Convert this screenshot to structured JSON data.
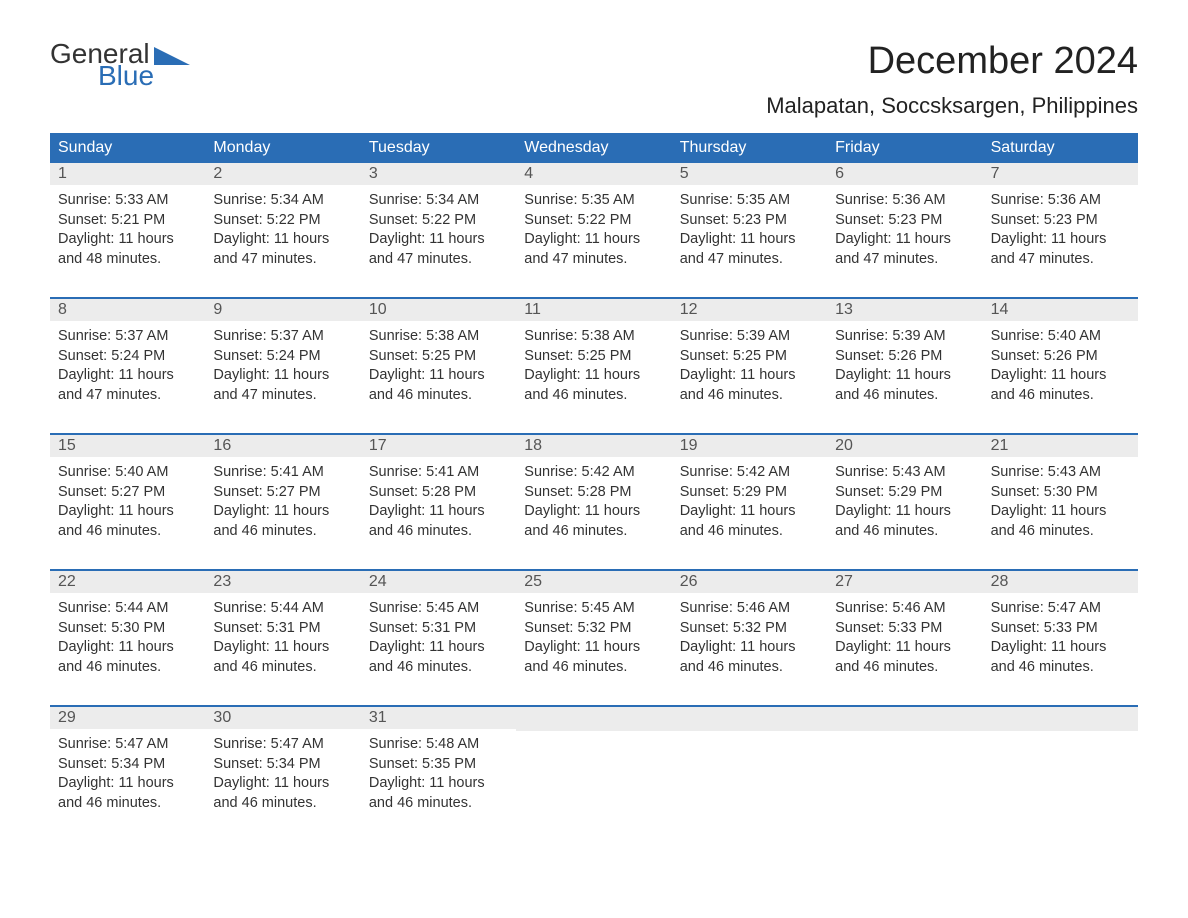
{
  "logo": {
    "word1": "General",
    "word2": "Blue"
  },
  "header": {
    "month_title": "December 2024",
    "location": "Malapatan, Soccsksargen, Philippines"
  },
  "colors": {
    "brand_blue": "#2a6db5",
    "header_bg": "#2a6db5",
    "header_text": "#ffffff",
    "daynum_bg": "#ececec",
    "body_text": "#333333",
    "page_bg": "#ffffff"
  },
  "layout": {
    "columns": 7,
    "weeks": 5,
    "cell_fontsize_pt": 11,
    "header_fontsize_pt": 12,
    "title_fontsize_pt": 28,
    "location_fontsize_pt": 16
  },
  "day_names": [
    "Sunday",
    "Monday",
    "Tuesday",
    "Wednesday",
    "Thursday",
    "Friday",
    "Saturday"
  ],
  "days": [
    {
      "n": 1,
      "sunrise": "5:33 AM",
      "sunset": "5:21 PM",
      "daylight": "11 hours and 48 minutes."
    },
    {
      "n": 2,
      "sunrise": "5:34 AM",
      "sunset": "5:22 PM",
      "daylight": "11 hours and 47 minutes."
    },
    {
      "n": 3,
      "sunrise": "5:34 AM",
      "sunset": "5:22 PM",
      "daylight": "11 hours and 47 minutes."
    },
    {
      "n": 4,
      "sunrise": "5:35 AM",
      "sunset": "5:22 PM",
      "daylight": "11 hours and 47 minutes."
    },
    {
      "n": 5,
      "sunrise": "5:35 AM",
      "sunset": "5:23 PM",
      "daylight": "11 hours and 47 minutes."
    },
    {
      "n": 6,
      "sunrise": "5:36 AM",
      "sunset": "5:23 PM",
      "daylight": "11 hours and 47 minutes."
    },
    {
      "n": 7,
      "sunrise": "5:36 AM",
      "sunset": "5:23 PM",
      "daylight": "11 hours and 47 minutes."
    },
    {
      "n": 8,
      "sunrise": "5:37 AM",
      "sunset": "5:24 PM",
      "daylight": "11 hours and 47 minutes."
    },
    {
      "n": 9,
      "sunrise": "5:37 AM",
      "sunset": "5:24 PM",
      "daylight": "11 hours and 47 minutes."
    },
    {
      "n": 10,
      "sunrise": "5:38 AM",
      "sunset": "5:25 PM",
      "daylight": "11 hours and 46 minutes."
    },
    {
      "n": 11,
      "sunrise": "5:38 AM",
      "sunset": "5:25 PM",
      "daylight": "11 hours and 46 minutes."
    },
    {
      "n": 12,
      "sunrise": "5:39 AM",
      "sunset": "5:25 PM",
      "daylight": "11 hours and 46 minutes."
    },
    {
      "n": 13,
      "sunrise": "5:39 AM",
      "sunset": "5:26 PM",
      "daylight": "11 hours and 46 minutes."
    },
    {
      "n": 14,
      "sunrise": "5:40 AM",
      "sunset": "5:26 PM",
      "daylight": "11 hours and 46 minutes."
    },
    {
      "n": 15,
      "sunrise": "5:40 AM",
      "sunset": "5:27 PM",
      "daylight": "11 hours and 46 minutes."
    },
    {
      "n": 16,
      "sunrise": "5:41 AM",
      "sunset": "5:27 PM",
      "daylight": "11 hours and 46 minutes."
    },
    {
      "n": 17,
      "sunrise": "5:41 AM",
      "sunset": "5:28 PM",
      "daylight": "11 hours and 46 minutes."
    },
    {
      "n": 18,
      "sunrise": "5:42 AM",
      "sunset": "5:28 PM",
      "daylight": "11 hours and 46 minutes."
    },
    {
      "n": 19,
      "sunrise": "5:42 AM",
      "sunset": "5:29 PM",
      "daylight": "11 hours and 46 minutes."
    },
    {
      "n": 20,
      "sunrise": "5:43 AM",
      "sunset": "5:29 PM",
      "daylight": "11 hours and 46 minutes."
    },
    {
      "n": 21,
      "sunrise": "5:43 AM",
      "sunset": "5:30 PM",
      "daylight": "11 hours and 46 minutes."
    },
    {
      "n": 22,
      "sunrise": "5:44 AM",
      "sunset": "5:30 PM",
      "daylight": "11 hours and 46 minutes."
    },
    {
      "n": 23,
      "sunrise": "5:44 AM",
      "sunset": "5:31 PM",
      "daylight": "11 hours and 46 minutes."
    },
    {
      "n": 24,
      "sunrise": "5:45 AM",
      "sunset": "5:31 PM",
      "daylight": "11 hours and 46 minutes."
    },
    {
      "n": 25,
      "sunrise": "5:45 AM",
      "sunset": "5:32 PM",
      "daylight": "11 hours and 46 minutes."
    },
    {
      "n": 26,
      "sunrise": "5:46 AM",
      "sunset": "5:32 PM",
      "daylight": "11 hours and 46 minutes."
    },
    {
      "n": 27,
      "sunrise": "5:46 AM",
      "sunset": "5:33 PM",
      "daylight": "11 hours and 46 minutes."
    },
    {
      "n": 28,
      "sunrise": "5:47 AM",
      "sunset": "5:33 PM",
      "daylight": "11 hours and 46 minutes."
    },
    {
      "n": 29,
      "sunrise": "5:47 AM",
      "sunset": "5:34 PM",
      "daylight": "11 hours and 46 minutes."
    },
    {
      "n": 30,
      "sunrise": "5:47 AM",
      "sunset": "5:34 PM",
      "daylight": "11 hours and 46 minutes."
    },
    {
      "n": 31,
      "sunrise": "5:48 AM",
      "sunset": "5:35 PM",
      "daylight": "11 hours and 46 minutes."
    }
  ],
  "labels": {
    "sunrise_prefix": "Sunrise: ",
    "sunset_prefix": "Sunset: ",
    "daylight_prefix": "Daylight: "
  }
}
